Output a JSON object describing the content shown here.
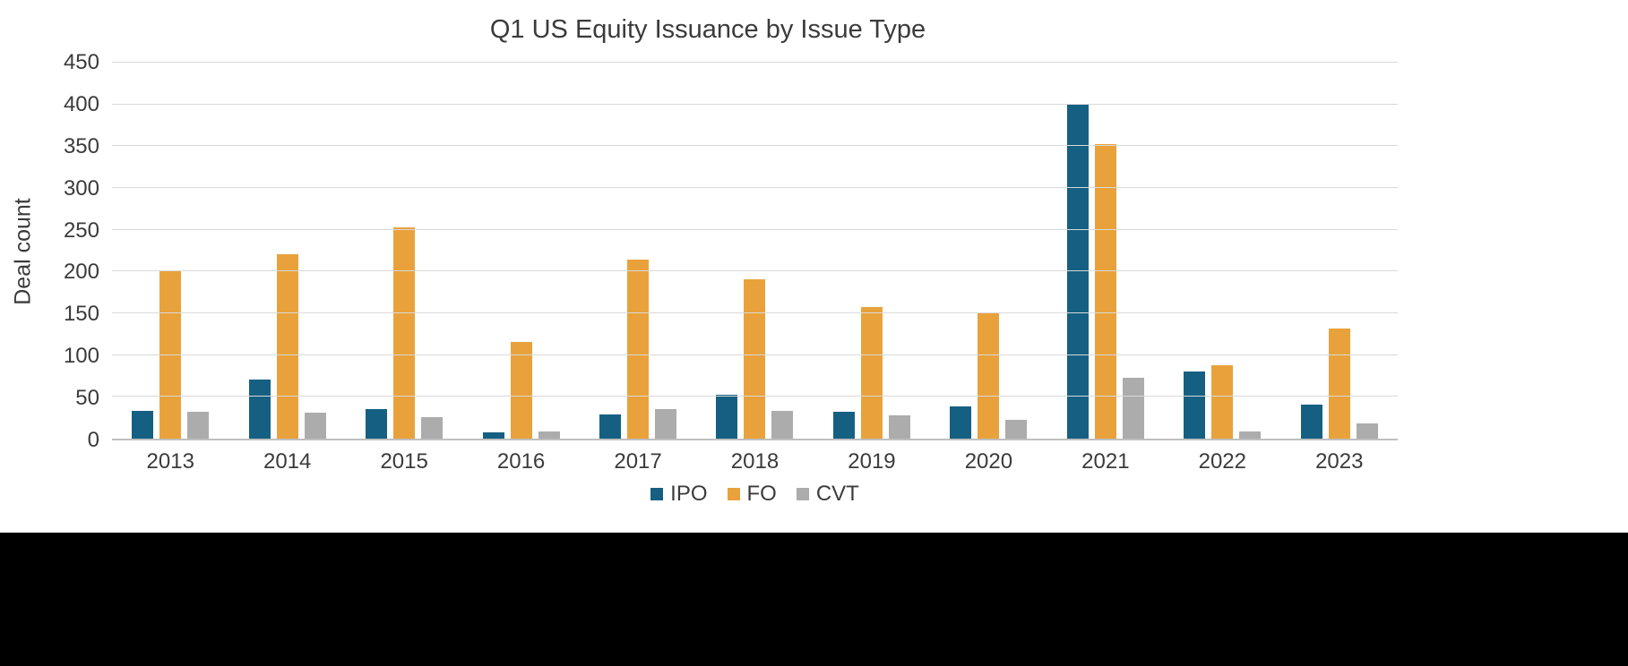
{
  "chart_data": {
    "type": "bar",
    "title": "Q1 US Equity Issuance by Issue Type",
    "xlabel": "",
    "ylabel": "Deal count",
    "ylim": [
      0,
      450
    ],
    "yticks": [
      0,
      50,
      100,
      150,
      200,
      250,
      300,
      350,
      400,
      450
    ],
    "grid": true,
    "legend_position": "bottom",
    "categories": [
      "2013",
      "2014",
      "2015",
      "2016",
      "2017",
      "2018",
      "2019",
      "2020",
      "2021",
      "2022",
      "2023"
    ],
    "series": [
      {
        "name": "IPO",
        "color": "#156082",
        "values": [
          33,
          71,
          35,
          8,
          29,
          52,
          32,
          39,
          400,
          80,
          41
        ]
      },
      {
        "name": "FO",
        "color": "#E9A23B",
        "values": [
          201,
          221,
          253,
          116,
          214,
          191,
          158,
          150,
          353,
          88,
          132
        ]
      },
      {
        "name": "CVT",
        "color": "#ACACAC",
        "values": [
          32,
          31,
          26,
          9,
          35,
          33,
          28,
          23,
          73,
          9,
          18
        ]
      }
    ]
  },
  "colors": {
    "gridline": "#d9d9d9",
    "axis_line": "#bfbfbf",
    "text": "#3b3b3b",
    "footer": "#000000"
  }
}
